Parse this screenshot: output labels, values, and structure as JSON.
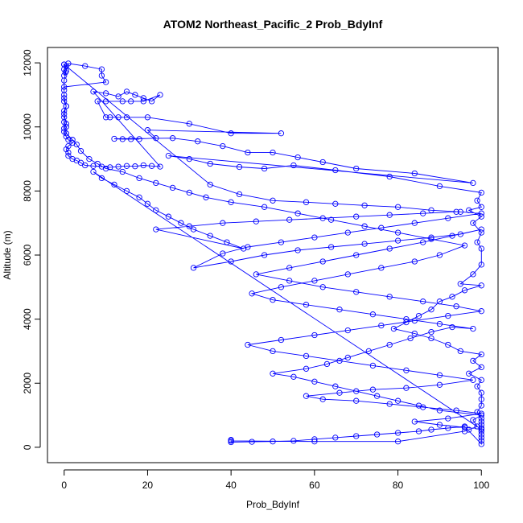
{
  "chart_data": {
    "type": "line",
    "title": "ATOM2 Northeast_Pacific_2 Prob_BdyInf",
    "xlabel": "Prob_BdyInf",
    "ylabel": "Altitude (m)",
    "xlim": [
      -4,
      104
    ],
    "ylim": [
      -480,
      12480
    ],
    "x_ticks": [
      0,
      20,
      40,
      60,
      80,
      100
    ],
    "y_ticks": [
      0,
      2000,
      4000,
      6000,
      8000,
      10000,
      12000
    ],
    "grid": false,
    "legend": "none",
    "marker": "open-circle",
    "series": [
      {
        "color": "#0000ff",
        "points": [
          [
            0,
            11950
          ],
          [
            0.5,
            11900
          ],
          [
            0,
            11800
          ],
          [
            0.3,
            11700
          ],
          [
            0,
            11600
          ],
          [
            1,
            11980
          ],
          [
            5,
            11900
          ],
          [
            9,
            11800
          ],
          [
            9,
            11600
          ],
          [
            10,
            11400
          ],
          [
            0,
            11250
          ],
          [
            0,
            11000
          ],
          [
            0,
            10800
          ],
          [
            0.5,
            10650
          ],
          [
            0,
            10500
          ],
          [
            0,
            10300
          ],
          [
            0,
            10150
          ],
          [
            0.5,
            10000
          ],
          [
            0,
            9850
          ],
          [
            0.5,
            9700
          ],
          [
            1,
            9600
          ],
          [
            2,
            9500
          ],
          [
            1,
            9400
          ],
          [
            0.5,
            9300
          ],
          [
            1,
            9200
          ],
          [
            1,
            9100
          ],
          [
            2,
            9000
          ],
          [
            3,
            8950
          ],
          [
            4,
            8880
          ],
          [
            5,
            8800
          ],
          [
            7,
            8780
          ],
          [
            9,
            8760
          ],
          [
            11,
            8740
          ],
          [
            13,
            8760
          ],
          [
            15,
            8780
          ],
          [
            17,
            8770
          ],
          [
            19,
            8800
          ],
          [
            21,
            8780
          ],
          [
            23,
            8760
          ],
          [
            7,
            11100
          ],
          [
            10,
            11050
          ],
          [
            13,
            10950
          ],
          [
            15,
            11100
          ],
          [
            17,
            11000
          ],
          [
            19,
            10900
          ],
          [
            21,
            10800
          ],
          [
            23,
            11000
          ],
          [
            19,
            10800
          ],
          [
            16,
            10800
          ],
          [
            14,
            10800
          ],
          [
            10,
            10800
          ],
          [
            8,
            10800
          ],
          [
            10,
            10300
          ],
          [
            11,
            10300
          ],
          [
            13,
            10300
          ],
          [
            15,
            10300
          ],
          [
            20,
            10300
          ],
          [
            30,
            10100
          ],
          [
            40,
            9800
          ],
          [
            52,
            9800
          ],
          [
            20,
            9900
          ],
          [
            22,
            9650
          ],
          [
            16,
            9620
          ],
          [
            18,
            9620
          ],
          [
            14,
            9620
          ],
          [
            12,
            9630
          ],
          [
            26,
            9650
          ],
          [
            32,
            9550
          ],
          [
            38,
            9400
          ],
          [
            44,
            9200
          ],
          [
            50,
            9200
          ],
          [
            56,
            9050
          ],
          [
            62,
            8900
          ],
          [
            70,
            8700
          ],
          [
            84,
            8550
          ],
          [
            98,
            8250
          ],
          [
            25,
            9100
          ],
          [
            30,
            9000
          ],
          [
            35,
            8850
          ],
          [
            42,
            8750
          ],
          [
            48,
            8700
          ],
          [
            55,
            8800
          ],
          [
            65,
            8650
          ],
          [
            78,
            8450
          ],
          [
            90,
            8150
          ],
          [
            100,
            7950
          ],
          [
            99,
            7700
          ],
          [
            100,
            7500
          ],
          [
            97,
            7400
          ],
          [
            100,
            7200
          ],
          [
            98,
            7000
          ],
          [
            100,
            6700
          ],
          [
            99,
            6400
          ],
          [
            100,
            6200
          ],
          [
            100,
            5700
          ],
          [
            98,
            5400
          ],
          [
            95,
            5100
          ],
          [
            100,
            5050
          ],
          [
            96,
            4900
          ],
          [
            93,
            4700
          ],
          [
            90,
            4550
          ],
          [
            88,
            4300
          ],
          [
            85,
            4100
          ],
          [
            82,
            3900
          ],
          [
            79,
            3700
          ],
          [
            84,
            3550
          ],
          [
            88,
            3400
          ],
          [
            92,
            3200
          ],
          [
            95,
            3000
          ],
          [
            100,
            2900
          ],
          [
            98,
            2700
          ],
          [
            100,
            2500
          ],
          [
            97,
            2300
          ],
          [
            100,
            2100
          ],
          [
            99,
            1900
          ],
          [
            100,
            1700
          ],
          [
            100,
            1500
          ],
          [
            100,
            1300
          ],
          [
            99,
            1100
          ],
          [
            100,
            900
          ],
          [
            100,
            800
          ],
          [
            100,
            700
          ],
          [
            100,
            600
          ],
          [
            100,
            500
          ],
          [
            100,
            400
          ],
          [
            100,
            300
          ],
          [
            100,
            200
          ],
          [
            100,
            100
          ],
          [
            96,
            650
          ],
          [
            92,
            600
          ],
          [
            88,
            550
          ],
          [
            85,
            500
          ],
          [
            80,
            450
          ],
          [
            75,
            400
          ],
          [
            70,
            350
          ],
          [
            65,
            300
          ],
          [
            60,
            250
          ],
          [
            55,
            200
          ],
          [
            50,
            180
          ],
          [
            45,
            170
          ],
          [
            40,
            160
          ],
          [
            40,
            230
          ],
          [
            40,
            200
          ],
          [
            60,
            180
          ],
          [
            80,
            180
          ],
          [
            96,
            500
          ],
          [
            97,
            550
          ],
          [
            99,
            650
          ],
          [
            98,
            850
          ],
          [
            100,
            1000
          ],
          [
            90,
            1150
          ],
          [
            85,
            1300
          ],
          [
            80,
            1450
          ],
          [
            75,
            1600
          ],
          [
            70,
            1750
          ],
          [
            65,
            1900
          ],
          [
            60,
            2050
          ],
          [
            55,
            2200
          ],
          [
            50,
            2300
          ],
          [
            58,
            2450
          ],
          [
            63,
            2600
          ],
          [
            68,
            2800
          ],
          [
            73,
            3000
          ],
          [
            78,
            3200
          ],
          [
            83,
            3400
          ],
          [
            88,
            3600
          ],
          [
            93,
            3750
          ],
          [
            98,
            3700
          ],
          [
            90,
            3850
          ],
          [
            82,
            4000
          ],
          [
            74,
            4150
          ],
          [
            66,
            4300
          ],
          [
            58,
            4450
          ],
          [
            50,
            4600
          ],
          [
            45,
            4800
          ],
          [
            52,
            5000
          ],
          [
            60,
            5200
          ],
          [
            68,
            5400
          ],
          [
            76,
            5600
          ],
          [
            84,
            5800
          ],
          [
            90,
            6000
          ],
          [
            96,
            6300
          ],
          [
            88,
            6500
          ],
          [
            80,
            6700
          ],
          [
            72,
            6900
          ],
          [
            64,
            7100
          ],
          [
            56,
            7300
          ],
          [
            48,
            7500
          ],
          [
            40,
            7650
          ],
          [
            34,
            7800
          ],
          [
            30,
            7950
          ],
          [
            26,
            8100
          ],
          [
            22,
            8250
          ],
          [
            18,
            8400
          ],
          [
            14,
            8600
          ],
          [
            10,
            8700
          ],
          [
            8,
            8850
          ],
          [
            6,
            9000
          ],
          [
            4,
            9250
          ],
          [
            3,
            9450
          ],
          [
            2,
            9600
          ],
          [
            0.5,
            9800
          ],
          [
            0,
            9950
          ],
          [
            0.5,
            10100
          ],
          [
            0,
            10400
          ],
          [
            0.5,
            10650
          ],
          [
            0,
            10900
          ],
          [
            0,
            11150
          ],
          [
            0,
            11450
          ],
          [
            0.5,
            11750
          ],
          [
            0,
            11950
          ],
          [
            35,
            8200
          ],
          [
            42,
            7900
          ],
          [
            50,
            7700
          ],
          [
            58,
            7650
          ],
          [
            65,
            7600
          ],
          [
            72,
            7550
          ],
          [
            80,
            7500
          ],
          [
            88,
            7400
          ],
          [
            95,
            7350
          ],
          [
            100,
            7300
          ],
          [
            92,
            7150
          ],
          [
            84,
            7000
          ],
          [
            76,
            6850
          ],
          [
            68,
            6700
          ],
          [
            60,
            6550
          ],
          [
            52,
            6400
          ],
          [
            44,
            6250
          ],
          [
            38,
            6050
          ],
          [
            31,
            5600
          ],
          [
            40,
            5800
          ],
          [
            48,
            6000
          ],
          [
            56,
            6150
          ],
          [
            64,
            6250
          ],
          [
            72,
            6350
          ],
          [
            80,
            6450
          ],
          [
            88,
            6550
          ],
          [
            95,
            6650
          ],
          [
            100,
            6800
          ],
          [
            93,
            6600
          ],
          [
            86,
            6400
          ],
          [
            78,
            6200
          ],
          [
            70,
            6000
          ],
          [
            62,
            5800
          ],
          [
            54,
            5600
          ],
          [
            46,
            5400
          ],
          [
            54,
            5200
          ],
          [
            62,
            5000
          ],
          [
            70,
            4850
          ],
          [
            78,
            4700
          ],
          [
            86,
            4550
          ],
          [
            94,
            4400
          ],
          [
            100,
            4250
          ],
          [
            92,
            4100
          ],
          [
            84,
            3950
          ],
          [
            76,
            3800
          ],
          [
            68,
            3650
          ],
          [
            60,
            3500
          ],
          [
            52,
            3350
          ],
          [
            44,
            3200
          ],
          [
            50,
            3000
          ],
          [
            58,
            2850
          ],
          [
            66,
            2700
          ],
          [
            74,
            2550
          ],
          [
            82,
            2400
          ],
          [
            90,
            2250
          ],
          [
            98,
            2100
          ],
          [
            90,
            1950
          ],
          [
            82,
            1850
          ],
          [
            74,
            1800
          ],
          [
            66,
            1700
          ],
          [
            58,
            1600
          ],
          [
            62,
            1500
          ],
          [
            70,
            1450
          ],
          [
            78,
            1350
          ],
          [
            86,
            1250
          ],
          [
            94,
            1150
          ],
          [
            100,
            1050
          ],
          [
            92,
            900
          ],
          [
            84,
            800
          ],
          [
            90,
            700
          ],
          [
            96,
            620
          ],
          [
            100,
            560
          ],
          [
            7,
            8600
          ],
          [
            9,
            8400
          ],
          [
            12,
            8200
          ],
          [
            15,
            8000
          ],
          [
            18,
            7800
          ],
          [
            20,
            7600
          ],
          [
            22,
            7400
          ],
          [
            25,
            7200
          ],
          [
            28,
            7000
          ],
          [
            31,
            6800
          ],
          [
            35,
            6600
          ],
          [
            39,
            6400
          ],
          [
            43,
            6200
          ],
          [
            22,
            6800
          ],
          [
            30,
            6900
          ],
          [
            38,
            7000
          ],
          [
            46,
            7050
          ],
          [
            54,
            7100
          ],
          [
            62,
            7150
          ],
          [
            70,
            7200
          ],
          [
            78,
            7250
          ],
          [
            86,
            7300
          ],
          [
            94,
            7350
          ]
        ]
      }
    ]
  }
}
